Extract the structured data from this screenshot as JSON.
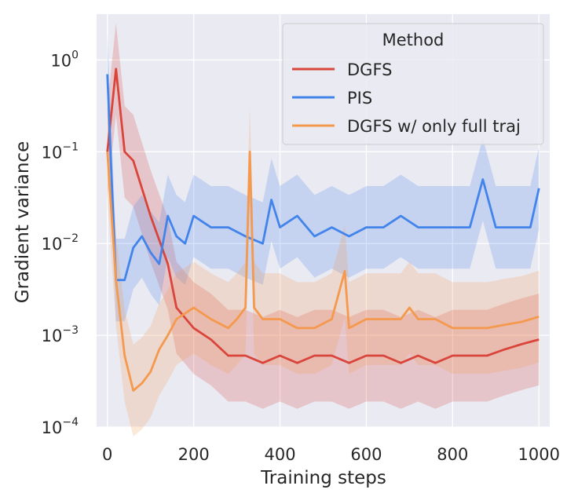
{
  "chart_data": {
    "type": "line",
    "xlabel": "Training steps",
    "ylabel": "Gradient variance",
    "xlim": [
      -25,
      1025
    ],
    "ylim_log10": [
      -4,
      0.5
    ],
    "yscale": "log",
    "x_ticks": [
      0,
      200,
      400,
      600,
      800,
      1000
    ],
    "x_tick_labels": [
      "0",
      "200",
      "400",
      "600",
      "800",
      "1000"
    ],
    "y_ticks": [
      {
        "base": "10",
        "exp": "0",
        "value": 1
      },
      {
        "base": "10",
        "exp": "−1",
        "value": 0.1
      },
      {
        "base": "10",
        "exp": "−2",
        "value": 0.01
      },
      {
        "base": "10",
        "exp": "−3",
        "value": 0.001
      },
      {
        "base": "10",
        "exp": "−4",
        "value": 0.0001
      }
    ],
    "legend": {
      "title": "Method",
      "position": "top-right"
    },
    "series": [
      {
        "name": "DGFS",
        "color": "#d9453b",
        "x": [
          0,
          20,
          40,
          60,
          80,
          100,
          140,
          160,
          200,
          240,
          280,
          320,
          360,
          400,
          440,
          480,
          520,
          560,
          600,
          640,
          680,
          720,
          760,
          800,
          840,
          880,
          920,
          960,
          1000
        ],
        "y": [
          0.1,
          0.8,
          0.1,
          0.08,
          0.04,
          0.02,
          0.006,
          0.002,
          0.0012,
          0.0009,
          0.0006,
          0.0006,
          0.0005,
          0.0006,
          0.0005,
          0.0006,
          0.0006,
          0.0005,
          0.0006,
          0.0006,
          0.0005,
          0.0006,
          0.0005,
          0.0006,
          0.0006,
          0.0006,
          0.0007,
          0.0008,
          0.0009
        ],
        "band": 0.5
      },
      {
        "name": "PIS",
        "color": "#4384eb",
        "x": [
          0,
          10,
          20,
          40,
          60,
          80,
          100,
          120,
          140,
          160,
          180,
          200,
          240,
          280,
          320,
          360,
          380,
          400,
          440,
          480,
          520,
          560,
          600,
          640,
          680,
          720,
          760,
          800,
          840,
          870,
          900,
          940,
          980,
          1000
        ],
        "y": [
          0.7,
          0.05,
          0.004,
          0.004,
          0.009,
          0.012,
          0.008,
          0.006,
          0.02,
          0.012,
          0.01,
          0.02,
          0.015,
          0.015,
          0.012,
          0.01,
          0.03,
          0.015,
          0.02,
          0.012,
          0.015,
          0.012,
          0.015,
          0.015,
          0.02,
          0.015,
          0.015,
          0.015,
          0.015,
          0.05,
          0.015,
          0.015,
          0.015,
          0.04
        ],
        "band": 0.45
      },
      {
        "name": "DGFS w/ only full traj",
        "color": "#f4994d",
        "x": [
          0,
          20,
          40,
          60,
          80,
          100,
          120,
          140,
          160,
          200,
          240,
          280,
          300,
          320,
          330,
          340,
          360,
          400,
          440,
          480,
          520,
          550,
          560,
          600,
          640,
          680,
          700,
          720,
          760,
          800,
          840,
          880,
          920,
          960,
          1000
        ],
        "y": [
          0.1,
          0.004,
          0.0006,
          0.00025,
          0.0003,
          0.0004,
          0.0007,
          0.001,
          0.0015,
          0.002,
          0.0015,
          0.0012,
          0.0015,
          0.002,
          0.1,
          0.002,
          0.0015,
          0.0015,
          0.0012,
          0.0012,
          0.0015,
          0.005,
          0.0012,
          0.0015,
          0.0015,
          0.0015,
          0.002,
          0.0015,
          0.0015,
          0.0012,
          0.0012,
          0.0012,
          0.0013,
          0.0014,
          0.0016
        ],
        "band": 0.5
      }
    ]
  }
}
